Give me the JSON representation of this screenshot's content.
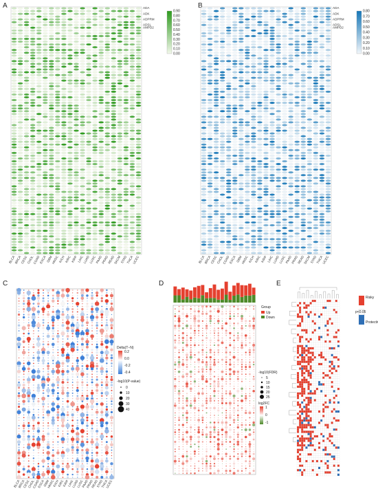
{
  "panels": {
    "A": {
      "label": "A"
    },
    "B": {
      "label": "B"
    },
    "C": {
      "label": "C"
    },
    "D": {
      "label": "D"
    },
    "E": {
      "label": "E"
    }
  },
  "colors": {
    "green_low": "#f2f7ea",
    "green_high": "#2e9b1e",
    "blue_low": "#f1f6fa",
    "blue_high": "#1677b8",
    "red": "#e5402f",
    "blue_neg": "#3d7fd8",
    "olive": "#4e8a2a",
    "grid": "#dcdcdc"
  },
  "chart_data": [
    {
      "panel": "A",
      "type": "heatmap",
      "color_scale": "green",
      "legend_ticks": [
        "0.90",
        "0.80",
        "0.70",
        "0.60",
        "0.50",
        "0.40",
        "0.30",
        "0.20",
        "0.10",
        "0.00"
      ],
      "legend_range": [
        0,
        0.9
      ],
      "x_categories": [
        "BLCA",
        "BRCA",
        "CESC",
        "CHOL",
        "COAD",
        "ESCA",
        "GBM",
        "HNSC",
        "KICH",
        "KIRC",
        "KIRP",
        "LIHC",
        "LUAD",
        "LUSC",
        "PAAD",
        "PRAD",
        "READ",
        "SKCM",
        "STAD",
        "THCA",
        "UCEC"
      ],
      "y_visible_labels": [
        "ADA",
        "",
        "ADK",
        "",
        "ADPRM",
        "",
        "ADSL",
        "AMPD2"
      ],
      "values": "dense matrix of correlation values; rows ~89 genes × 21 cancer types; most values 0.05–0.3 with sparse strong cells up to 0.9"
    },
    {
      "panel": "B",
      "type": "heatmap",
      "color_scale": "blue",
      "legend_ticks": [
        "0.80",
        "0.70",
        "0.60",
        "0.50",
        "0.40",
        "0.30",
        "0.20",
        "0.10",
        "0.00"
      ],
      "legend_range": [
        0,
        0.8
      ],
      "y_visible_labels": [
        "ADA",
        "",
        "ADK",
        "",
        "ADPRM",
        "",
        "ADSL",
        "AMPD2"
      ]
    },
    {
      "panel": "C",
      "type": "scatter",
      "legend": {
        "color_title": "Delta(T−N)",
        "color_ticks": [
          "0.2",
          "0.0",
          "-0.2",
          "-0.4"
        ],
        "size_title": "-log10(P-value)",
        "size_ticks": [
          "0",
          "10",
          "20",
          "30",
          "40"
        ]
      },
      "x_categories": [
        "BLCA",
        "BRCA",
        "CESC",
        "CHOL",
        "COAD",
        "ESCA",
        "GBM",
        "HNSC",
        "KICH",
        "KIRC",
        "KIRP",
        "LIHC",
        "LUAD",
        "LUSC",
        "PAAD",
        "PRAD",
        "READ",
        "STAD",
        "THCA",
        "UCEC"
      ]
    },
    {
      "panel": "D",
      "type": "scatter",
      "legend": {
        "group_title": "Group",
        "groups": [
          "Up",
          "Down"
        ],
        "size_title": "-log10(FDR)",
        "size_ticks": [
          "5",
          "10",
          "15",
          "20",
          "25"
        ],
        "color_title": "log2FC",
        "color_ticks": [
          "1",
          "0",
          "-1"
        ]
      }
    },
    {
      "panel": "E",
      "type": "heatmap",
      "legend": {
        "entries": [
          "Risky",
          "p<0.05",
          "Protective"
        ]
      }
    }
  ]
}
